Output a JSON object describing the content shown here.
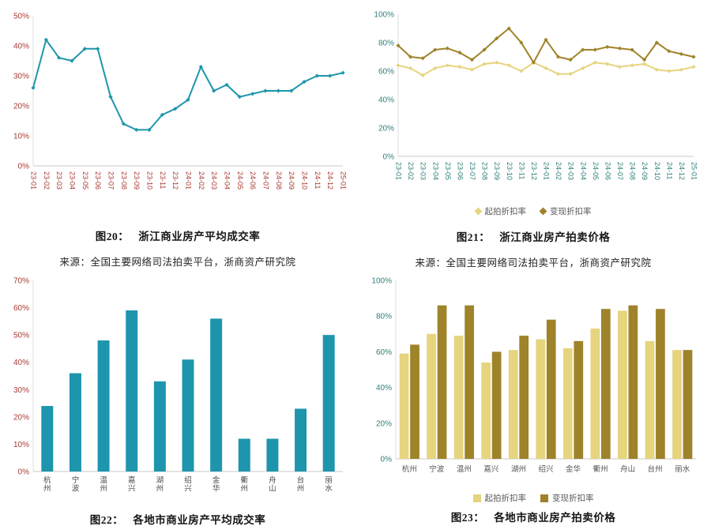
{
  "accent_colors": {
    "teal": "#1d95ad",
    "light_gold": "#e6d47f",
    "dark_gold": "#9f832a",
    "red_ticks": "#a93a32",
    "teal_ticks": "#2e8079"
  },
  "figures": [
    {
      "caption_label": "图20：",
      "caption_title": "浙江商业房产平均成交率",
      "source": "来源：全国主要网络司法拍卖平台，浙商资产研究院"
    },
    {
      "caption_label": "图21：",
      "caption_title": "浙江商业房产拍卖价格",
      "source": "来源：全国主要网络司法拍卖平台，浙商资产研究院"
    },
    {
      "caption_label": "图22：",
      "caption_title": "各地市商业房产平均成交率"
    },
    {
      "caption_label": "图23：",
      "caption_title": "各地市商业房产拍卖价格"
    }
  ],
  "chart_data": [
    {
      "type": "line",
      "title": "图20： 浙江商业房产平均成交率",
      "xlabel": "",
      "ylabel": "",
      "ylim": [
        0,
        50
      ],
      "yticks": [
        0,
        10,
        20,
        30,
        40,
        50
      ],
      "tick_color": "#a93a32",
      "xtick_color": "#a93a32",
      "legend": "none",
      "categories": [
        "23-01",
        "23-02",
        "23-03",
        "23-04",
        "23-05",
        "23-06",
        "23-07",
        "23-08",
        "23-09",
        "23-10",
        "23-11",
        "23-12",
        "24-01",
        "24-02",
        "24-03",
        "24-04",
        "24-05",
        "24-06",
        "24-07",
        "24-08",
        "24-09",
        "24-10",
        "24-11",
        "24-12",
        "25-01"
      ],
      "series": [
        {
          "name": "平均成交率",
          "color": "#1d95ad",
          "values": [
            26,
            42,
            36,
            35,
            39,
            39,
            23,
            14,
            12,
            12,
            17,
            19,
            22,
            33,
            25,
            27,
            23,
            24,
            25,
            25,
            25,
            28,
            30,
            30,
            31
          ]
        }
      ]
    },
    {
      "type": "line",
      "title": "图21： 浙江商业房产拍卖价格",
      "xlabel": "",
      "ylabel": "",
      "ylim": [
        0,
        100
      ],
      "yticks": [
        0,
        20,
        40,
        60,
        80,
        100
      ],
      "tick_color": "#2e8079",
      "xtick_color": "#2e8079",
      "legend": "bottom",
      "legend_marker": "diamond",
      "categories": [
        "23-01",
        "23-02",
        "23-03",
        "23-04",
        "23-05",
        "23-06",
        "23-07",
        "23-08",
        "23-09",
        "23-10",
        "23-11",
        "23-12",
        "24-01",
        "24-02",
        "24-03",
        "24-04",
        "24-05",
        "24-06",
        "24-07",
        "24-08",
        "24-09",
        "24-10",
        "24-11",
        "24-12",
        "25-01"
      ],
      "series": [
        {
          "name": "起拍折扣率",
          "color": "#e6d47f",
          "values": [
            64,
            62,
            57,
            62,
            64,
            63,
            61,
            65,
            66,
            64,
            60,
            66,
            62,
            58,
            58,
            62,
            66,
            65,
            63,
            64,
            65,
            61,
            60,
            61,
            63
          ]
        },
        {
          "name": "变现折扣率",
          "color": "#9f832a",
          "values": [
            78,
            70,
            69,
            75,
            76,
            73,
            68,
            75,
            83,
            90,
            80,
            66,
            82,
            70,
            68,
            75,
            75,
            77,
            76,
            75,
            68,
            80,
            74,
            72,
            70
          ]
        }
      ]
    },
    {
      "type": "bar",
      "title": "图22： 各地市商业房产平均成交率",
      "xlabel": "",
      "ylabel": "",
      "ylim": [
        0,
        70
      ],
      "yticks": [
        0,
        10,
        20,
        30,
        40,
        50,
        60,
        70
      ],
      "tick_color": "#a93a32",
      "xtick_color": "#4a4a4a",
      "legend": "none",
      "categories": [
        "杭州",
        "宁波",
        "温州",
        "嘉兴",
        "湖州",
        "绍兴",
        "金华",
        "衢州",
        "舟山",
        "台州",
        "丽水"
      ],
      "series": [
        {
          "name": "平均成交率",
          "color": "#1d95ad",
          "values": [
            24,
            36,
            48,
            59,
            33,
            41,
            56,
            12,
            12,
            23,
            50
          ]
        }
      ]
    },
    {
      "type": "bar",
      "title": "图23： 各地市商业房产拍卖价格",
      "xlabel": "",
      "ylabel": "",
      "ylim": [
        0,
        100
      ],
      "yticks": [
        0,
        20,
        40,
        60,
        80,
        100
      ],
      "tick_color": "#2e8079",
      "xtick_color": "#555555",
      "legend": "bottom",
      "legend_marker": "square",
      "categories": [
        "杭州",
        "宁波",
        "温州",
        "嘉兴",
        "湖州",
        "绍兴",
        "金华",
        "衢州",
        "舟山",
        "台州",
        "丽水"
      ],
      "series": [
        {
          "name": "起拍折扣率",
          "color": "#e6d47f",
          "values": [
            59,
            70,
            69,
            54,
            61,
            67,
            62,
            73,
            83,
            66,
            61
          ]
        },
        {
          "name": "变现折扣率",
          "color": "#9f832a",
          "values": [
            64,
            86,
            86,
            60,
            69,
            78,
            66,
            84,
            86,
            84,
            61
          ]
        }
      ]
    }
  ]
}
